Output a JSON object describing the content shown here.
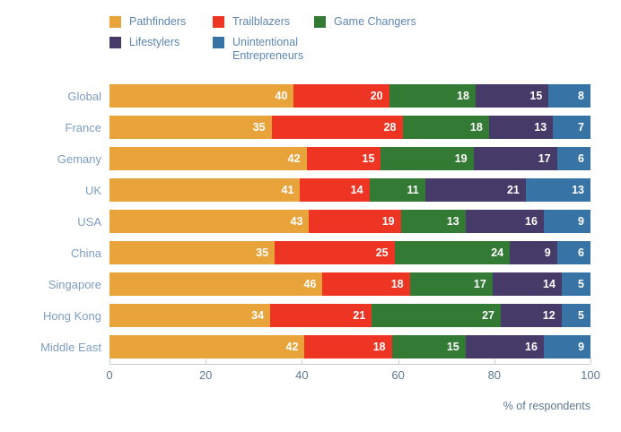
{
  "chart_data": {
    "type": "bar",
    "stacked": true,
    "orientation": "horizontal",
    "categories": [
      "Global",
      "France",
      "Gemany",
      "UK",
      "USA",
      "China",
      "Singapore",
      "Hong Kong",
      "Middle East"
    ],
    "series": [
      {
        "name": "Pathfinders",
        "color": "#e8a33b",
        "values": [
          40,
          35,
          42,
          41,
          43,
          35,
          46,
          34,
          42
        ]
      },
      {
        "name": "Trailblazers",
        "color": "#ee3524",
        "values": [
          20,
          28,
          15,
          14,
          19,
          25,
          18,
          21,
          18
        ]
      },
      {
        "name": "Game Changers",
        "color": "#337a35",
        "values": [
          18,
          18,
          19,
          11,
          13,
          24,
          17,
          27,
          15
        ]
      },
      {
        "name": "Lifestylers",
        "color": "#453a68",
        "values": [
          15,
          13,
          17,
          21,
          16,
          9,
          14,
          12,
          16
        ]
      },
      {
        "name": "Unintentional Entrepreneurs",
        "color": "#3873a5",
        "values": [
          8,
          7,
          6,
          13,
          9,
          6,
          5,
          5,
          9
        ]
      }
    ],
    "xlabel": "% of respondents",
    "x_ticks": [
      0,
      20,
      40,
      60,
      80,
      100
    ],
    "xlim": [
      0,
      100
    ],
    "legend_position": "top",
    "value_labels": "inside-right, white bold",
    "colors": {
      "row_label_text": "#7e9dc1",
      "legend_text": "#5d87b2",
      "axis_text": "#5e7993",
      "axis_line": "#c6ced4",
      "background": "#ffffff"
    }
  }
}
